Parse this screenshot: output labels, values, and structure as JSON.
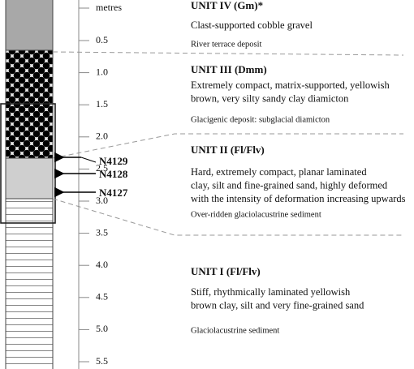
{
  "scale": {
    "unit": "metres",
    "ticks": [
      "0.5",
      "1.0",
      "1.5",
      "2.0",
      "2.5",
      "3.0",
      "3.5",
      "4.0",
      "4.5",
      "5.0",
      "5.5"
    ]
  },
  "samples": [
    "N4129",
    "N4128",
    "N4127"
  ],
  "units": [
    {
      "title": "UNIT IV  (Gm)*",
      "description": [
        "Clast-supported cobble gravel"
      ],
      "deposit": "River terrace deposit"
    },
    {
      "title": "UNIT III  (Dmm)",
      "description": [
        "Extremely compact, matrix-supported, yellowish",
        "brown, very silty sandy clay diamicton"
      ],
      "deposit": "Glacigenic deposit: subglacial diamicton"
    },
    {
      "title": "UNIT II  (Fl/Flv)",
      "description": [
        "Hard, extremely compact, planar laminated",
        "clay, silt and fine-grained sand, highly deformed",
        "with the intensity of deformation increasing upwards"
      ],
      "deposit": "Over-ridden glaciolacustrine sediment"
    },
    {
      "title": "UNIT I  (Fl/Flv)",
      "description": [
        "Stiff, rhythmically laminated yellowish",
        "brown clay, silt and very fine-grained sand"
      ],
      "deposit": "Glaciolacustrine sediment"
    }
  ]
}
